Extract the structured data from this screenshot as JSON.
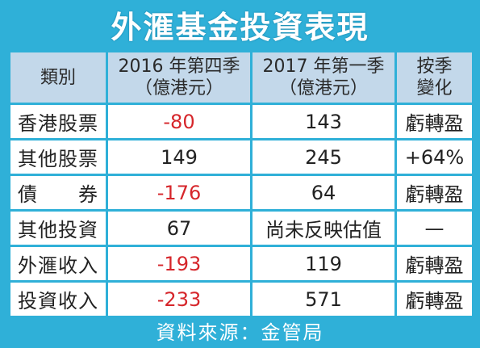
{
  "title": "外滙基金投資表現",
  "columns": {
    "category": "類別",
    "q4_2016": [
      "2016 年第四季",
      "（億港元）"
    ],
    "q1_2017": [
      "2017 年第一季",
      "（億港元）"
    ],
    "change": [
      "按季",
      "變化"
    ]
  },
  "rows": [
    {
      "category": "香港股票",
      "q4_2016": "-80",
      "q1_2017": "143",
      "change": "虧轉盈"
    },
    {
      "category": "其他股票",
      "q4_2016": "149",
      "q1_2017": "245",
      "change": "+64%"
    },
    {
      "category": "債　　券",
      "q4_2016": "-176",
      "q1_2017": "64",
      "change": "虧轉盈"
    },
    {
      "category": "其他投資",
      "q4_2016": "67",
      "q1_2017": "尚未反映估值",
      "change": "—"
    },
    {
      "category": "外滙收入",
      "q4_2016": "-193",
      "q1_2017": "119",
      "change": "虧轉盈"
    },
    {
      "category": "投資收入",
      "q4_2016": "-233",
      "q1_2017": "571",
      "change": "虧轉盈"
    }
  ],
  "source": "資料來源：金管局",
  "colors": {
    "background": "#2fb0d8",
    "header": "#c3d8ea",
    "negative": "#d6262b"
  },
  "chart_data": {
    "type": "table",
    "title": "外滙基金投資表現",
    "columns": [
      "類別",
      "2016 年第四季（億港元）",
      "2017 年第一季（億港元）",
      "按季變化"
    ],
    "rows": [
      [
        "香港股票",
        -80,
        143,
        "虧轉盈"
      ],
      [
        "其他股票",
        149,
        245,
        "+64%"
      ],
      [
        "債　　券",
        -176,
        64,
        "虧轉盈"
      ],
      [
        "其他投資",
        67,
        "尚未反映估值",
        "—"
      ],
      [
        "外滙收入",
        -193,
        119,
        "虧轉盈"
      ],
      [
        "投資收入",
        -233,
        571,
        "虧轉盈"
      ]
    ]
  }
}
